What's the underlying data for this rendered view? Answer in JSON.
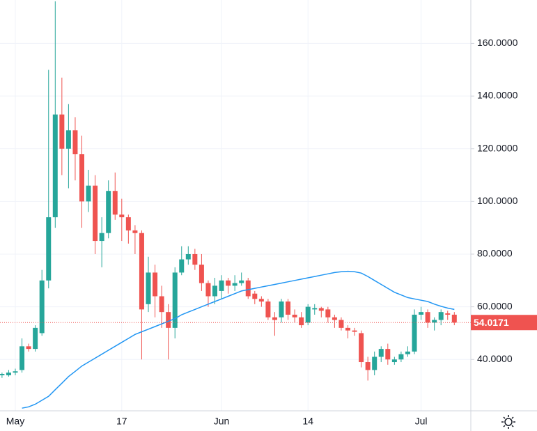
{
  "chart_data": {
    "type": "candlestick",
    "categories": [
      null,
      null,
      "May",
      null,
      null,
      null,
      null,
      null,
      null,
      null,
      null,
      null,
      null,
      null,
      null,
      null,
      null,
      null,
      "17",
      null,
      null,
      null,
      null,
      null,
      null,
      null,
      null,
      null,
      null,
      null,
      null,
      null,
      null,
      "Jun",
      null,
      null,
      null,
      null,
      null,
      null,
      null,
      null,
      null,
      null,
      null,
      null,
      "14",
      null,
      null,
      null,
      null,
      null,
      null,
      null,
      null,
      null,
      null,
      null,
      null,
      null,
      null,
      null,
      null,
      "Jul",
      null,
      null,
      null,
      null,
      null
    ],
    "open": [
      34,
      34,
      35,
      36,
      45,
      44,
      50,
      70,
      94,
      133,
      120,
      127,
      118,
      100,
      106,
      85,
      88,
      104,
      95,
      94,
      89,
      88,
      61,
      73,
      64,
      58,
      52,
      73,
      78,
      80,
      76,
      69,
      64,
      66,
      70,
      68,
      69,
      70,
      65,
      63,
      62,
      56,
      56,
      62,
      57,
      56,
      54,
      59,
      59.5,
      59,
      56,
      55,
      52,
      51,
      50,
      39,
      36,
      41,
      44,
      39,
      40,
      42,
      43,
      57,
      58,
      54,
      55,
      57.5,
      57
    ],
    "high": [
      35,
      36,
      36.5,
      48,
      46,
      53,
      74,
      150,
      176,
      147,
      137,
      132,
      125,
      112,
      110,
      94,
      108,
      111,
      101,
      95,
      91,
      89,
      79,
      76,
      68,
      61,
      75,
      83,
      83,
      82,
      80,
      70,
      71,
      72,
      71,
      72,
      73,
      71,
      66,
      64,
      63,
      58,
      63,
      63,
      59,
      58,
      61,
      61,
      60,
      60,
      57,
      56,
      53,
      52,
      51,
      41,
      43,
      45,
      46,
      41,
      43,
      45,
      59,
      60,
      59,
      56,
      59,
      58.5,
      58
    ],
    "low": [
      33,
      33.5,
      34,
      35,
      43,
      43,
      49,
      67,
      90,
      110,
      105,
      108,
      90,
      96,
      80,
      75,
      86,
      93,
      85,
      84,
      80,
      40,
      58,
      56,
      52,
      40,
      48,
      72,
      76,
      74,
      66,
      60,
      61,
      63,
      65,
      66,
      68,
      63,
      61,
      60,
      55,
      49,
      54,
      55,
      54,
      52,
      53,
      57,
      56,
      54,
      52,
      51,
      48,
      49,
      37,
      32,
      34,
      39,
      38,
      38,
      39,
      41,
      42,
      55,
      52,
      51,
      53,
      55,
      53
    ],
    "close": [
      34.5,
      35,
      35.5,
      45,
      44,
      52,
      70,
      94,
      133,
      120,
      127,
      118,
      100,
      106,
      85,
      88,
      104,
      95,
      94,
      89,
      88,
      59,
      73,
      64,
      58,
      52,
      73,
      78,
      80,
      76,
      69,
      64,
      68,
      70,
      68,
      69,
      70,
      64,
      63,
      62,
      56,
      55,
      62,
      57,
      56,
      53,
      60,
      59.5,
      58.5,
      56,
      55,
      52,
      51,
      50.5,
      39,
      36,
      41,
      44,
      40,
      40,
      42,
      43,
      57,
      58,
      54,
      55,
      58,
      57,
      54.0171
    ],
    "ma": {
      "color": "#2196f3",
      "values": [
        null,
        null,
        null,
        21.5,
        22,
        23,
        24.5,
        26,
        28.5,
        31,
        33.5,
        35.5,
        37.5,
        39,
        40.5,
        42,
        43.5,
        45,
        46.5,
        48,
        49.5,
        50.5,
        51.5,
        52.5,
        53.5,
        54.5,
        55.5,
        57,
        58,
        59,
        60,
        61,
        62,
        63,
        64,
        65,
        66,
        66.5,
        67,
        67.5,
        68,
        68.5,
        69,
        69.5,
        70,
        70.5,
        71,
        71.5,
        72,
        72.5,
        73,
        73.3,
        73.5,
        73.3,
        72.8,
        71.5,
        70,
        68.5,
        67,
        65.5,
        64.5,
        63.5,
        63,
        62.5,
        62,
        61,
        60.2,
        59.5,
        59
      ]
    },
    "up_color": "#26a69a",
    "down_color": "#ef5350",
    "ylim": [
      20.5,
      176.5
    ],
    "yticks": [
      {
        "value": 40,
        "label": "40.0000"
      },
      {
        "value": 60,
        "label": "60.0000"
      },
      {
        "value": 80,
        "label": "80.0000"
      },
      {
        "value": 100,
        "label": "100.0000"
      },
      {
        "value": 120,
        "label": "120.0000"
      },
      {
        "value": 140,
        "label": "140.0000"
      },
      {
        "value": 160,
        "label": "160.0000"
      }
    ],
    "grid": true
  }
}
